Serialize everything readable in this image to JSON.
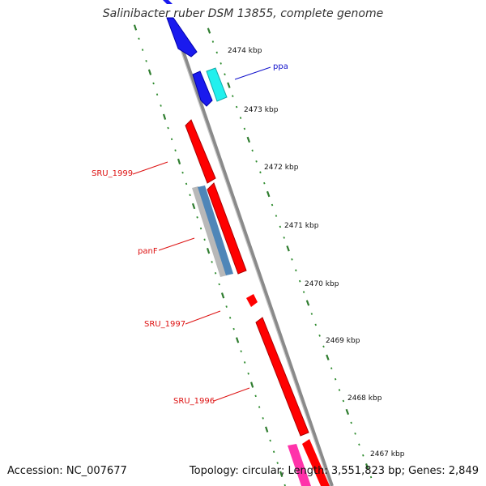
{
  "title": "Salinibacter ruber DSM 13855, complete genome",
  "accession": "Accession: NC_007677",
  "summary": "Topology: circular; Length: 3,551,823 bp; Genes: 2,849",
  "colors": {
    "backbone": "#888888",
    "tick_green": "#2f7d2f",
    "dot_green": "#2e8b2e",
    "label_red": "#dd1111",
    "label_blue": "#1111cc",
    "gene_red": "#ff0000",
    "gene_blue": "#1a1aee",
    "gene_cyan": "#22f0ee",
    "gene_pink": "#ff33aa",
    "gene_steel": "#4f86b8",
    "gene_grey": "#b8b8b8"
  },
  "scale": {
    "unit": "kbp",
    "ticks": [
      {
        "value": 2474,
        "label": "2474 kbp"
      },
      {
        "value": 2473,
        "label": "2473 kbp"
      },
      {
        "value": 2472,
        "label": "2472 kbp"
      },
      {
        "value": 2471,
        "label": "2471 kbp"
      },
      {
        "value": 2470,
        "label": "2470 kbp"
      },
      {
        "value": 2469,
        "label": "2469 kbp"
      },
      {
        "value": 2468,
        "label": "2468 kbp"
      },
      {
        "value": 2467,
        "label": "2467 kbp"
      }
    ]
  },
  "gene_labels": [
    {
      "name": "ppa",
      "color": "label_blue"
    },
    {
      "name": "SRU_1999",
      "color": "label_red"
    },
    {
      "name": "panF",
      "color": "label_red"
    },
    {
      "name": "SRU_1997",
      "color": "label_red"
    },
    {
      "name": "SRU_1996",
      "color": "label_red"
    }
  ],
  "features": [
    {
      "id": "blue-upper",
      "color": "gene_blue"
    },
    {
      "id": "blue-lower",
      "color": "gene_blue"
    },
    {
      "id": "ppa",
      "color": "gene_cyan"
    },
    {
      "id": "SRU_1999",
      "color": "gene_red"
    },
    {
      "id": "panF-grey",
      "color": "gene_grey"
    },
    {
      "id": "panF-steel",
      "color": "gene_steel"
    },
    {
      "id": "red-upper",
      "color": "gene_red"
    },
    {
      "id": "red-small",
      "color": "gene_red"
    },
    {
      "id": "SRU_1996",
      "color": "gene_red"
    },
    {
      "id": "pink-bottom",
      "color": "gene_pink"
    },
    {
      "id": "red-bottom",
      "color": "gene_red"
    }
  ]
}
